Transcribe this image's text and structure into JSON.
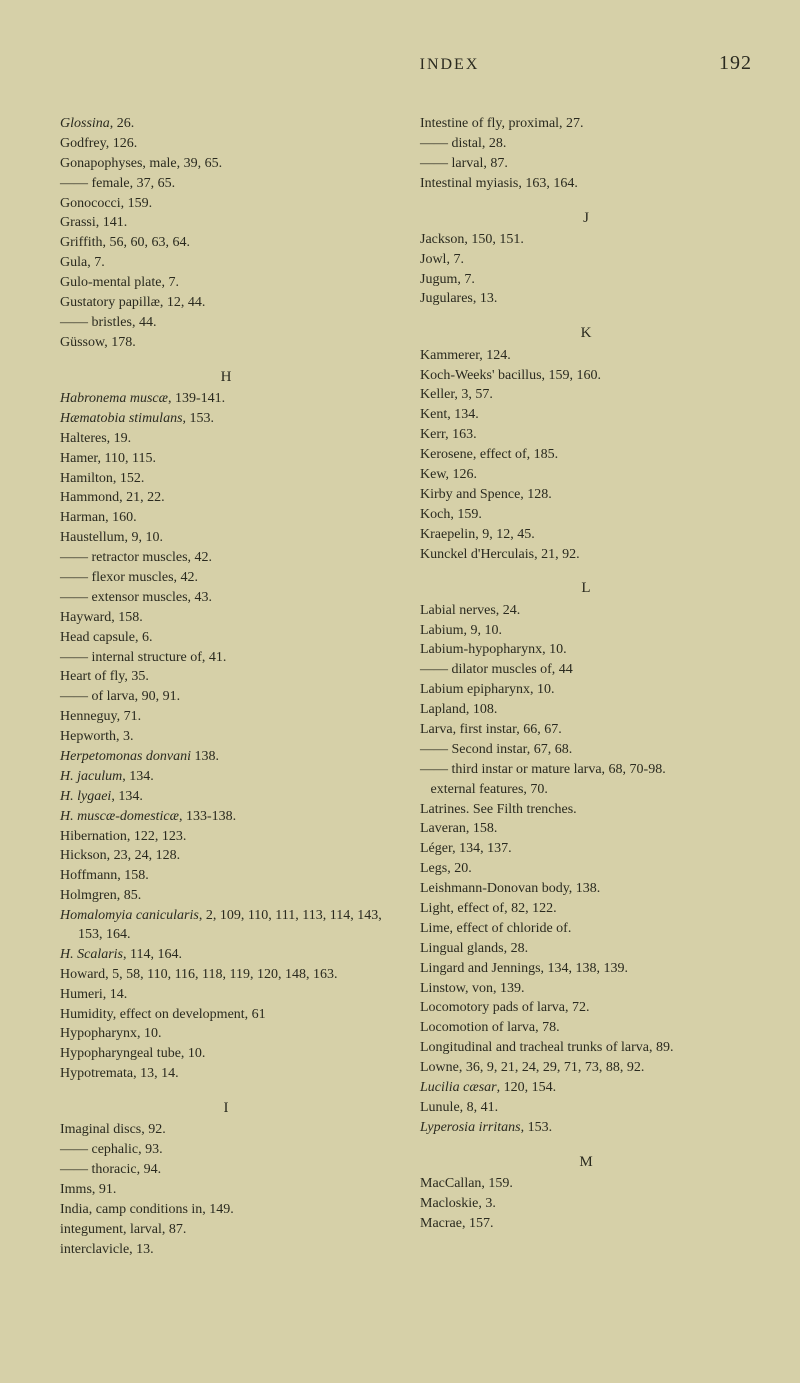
{
  "header": {
    "title": "INDEX",
    "page": "192"
  },
  "left": {
    "block1": [
      {
        "t": "<i>Glossina</i>, 26."
      },
      {
        "t": "Godfrey, 126."
      },
      {
        "t": "Gonapophyses, male, 39, 65."
      },
      {
        "t": "—— female, 37, 65."
      },
      {
        "t": "Gonococci, 159."
      },
      {
        "t": "Grassi, 141."
      },
      {
        "t": "Griffith, 56, 60, 63, 64."
      },
      {
        "t": "Gula, 7."
      },
      {
        "t": "Gulo-mental plate, 7."
      },
      {
        "t": "Gustatory papillæ, 12, 44."
      },
      {
        "t": "—— bristles, 44."
      },
      {
        "t": "Güssow, 178."
      }
    ],
    "H_letter": "H",
    "H_block": [
      {
        "t": "<i>Habronema muscæ</i>, 139-141."
      },
      {
        "t": "<i>Hæmatobia stimulans</i>, 153."
      },
      {
        "t": "Halteres, 19."
      },
      {
        "t": "Hamer, 110, 115."
      },
      {
        "t": "Hamilton, 152."
      },
      {
        "t": "Hammond, 21, 22."
      },
      {
        "t": "Harman, 160."
      },
      {
        "t": "Haustellum, 9, 10."
      },
      {
        "t": "—— retractor muscles, 42."
      },
      {
        "t": "—— flexor muscles, 42."
      },
      {
        "t": "—— extensor muscles, 43."
      },
      {
        "t": "Hayward, 158."
      },
      {
        "t": "Head capsule, 6."
      },
      {
        "t": "—— internal structure of, 41."
      },
      {
        "t": "Heart of fly, 35."
      },
      {
        "t": "—— of larva, 90, 91."
      },
      {
        "t": "Henneguy, 71."
      },
      {
        "t": "Hepworth, 3."
      },
      {
        "t": "<i>Herpetomonas donvani</i> 138."
      },
      {
        "t": "<i>H. jaculum</i>, 134."
      },
      {
        "t": "<i>H. lygaei</i>, 134."
      },
      {
        "t": "<i>H. muscæ-domesticæ</i>, 133-138."
      },
      {
        "t": "Hibernation, 122, 123."
      },
      {
        "t": "Hickson, 23, 24, 128."
      },
      {
        "t": "Hoffmann, 158."
      },
      {
        "t": "Holmgren, 85."
      },
      {
        "t": "<i>Homalomyia canicularis</i>, 2, 109, 110, 111, 113, 114, 143, 153, 164."
      },
      {
        "t": "<i>H. Scalaris</i>, 114, 164."
      },
      {
        "t": "Howard, 5, 58, 110, 116, 118, 119, 120, 148, 163."
      },
      {
        "t": "Humeri, 14."
      },
      {
        "t": "Humidity, effect on development, 61"
      },
      {
        "t": "Hypopharynx, 10."
      },
      {
        "t": "Hypopharyngeal tube, 10."
      },
      {
        "t": "Hypotremata, 13, 14."
      }
    ],
    "I_letter": "I",
    "I_block": [
      {
        "t": "Imaginal discs, 92."
      },
      {
        "t": "—— cephalic, 93."
      },
      {
        "t": "—— thoracic, 94."
      },
      {
        "t": "Imms, 91."
      },
      {
        "t": "India, camp conditions in, 149."
      },
      {
        "t": "integument, larval, 87."
      },
      {
        "t": "interclavicle, 13."
      }
    ]
  },
  "right": {
    "block1": [
      {
        "t": "Intestine of fly, proximal, 27."
      },
      {
        "t": "—— distal, 28."
      },
      {
        "t": "—— larval, 87."
      },
      {
        "t": "Intestinal myiasis, 163, 164."
      }
    ],
    "J_letter": "J",
    "J_block": [
      {
        "t": "Jackson, 150, 151."
      },
      {
        "t": "Jowl, 7."
      },
      {
        "t": "Jugum, 7."
      },
      {
        "t": "Jugulares, 13."
      }
    ],
    "K_letter": "K",
    "K_block": [
      {
        "t": "Kammerer, 124."
      },
      {
        "t": "Koch-Weeks' bacillus, 159, 160."
      },
      {
        "t": "Keller, 3, 57."
      },
      {
        "t": "Kent, 134."
      },
      {
        "t": "Kerr, 163."
      },
      {
        "t": "Kerosene, effect of, 185."
      },
      {
        "t": "Kew, 126."
      },
      {
        "t": "Kirby and Spence, 128."
      },
      {
        "t": "Koch, 159."
      },
      {
        "t": "Kraepelin, 9, 12, 45."
      },
      {
        "t": "Kunckel d'Herculais, 21, 92."
      }
    ],
    "L_letter": "L",
    "L_block": [
      {
        "t": "Labial nerves, 24."
      },
      {
        "t": "Labium, 9, 10."
      },
      {
        "t": "Labium-hypopharynx, 10."
      },
      {
        "t": "—— dilator muscles of, 44"
      },
      {
        "t": "Labium epipharynx, 10."
      },
      {
        "t": "Lapland, 108."
      },
      {
        "t": "Larva, first instar, 66, 67."
      },
      {
        "t": "—— Second instar, 67, 68."
      },
      {
        "t": "—— third instar or mature larva, 68, 70-98."
      },
      {
        "t": "&nbsp;&nbsp;&nbsp;external features, 70."
      },
      {
        "t": "Latrines. See Filth trenches."
      },
      {
        "t": "Laveran, 158."
      },
      {
        "t": "Léger, 134, 137."
      },
      {
        "t": "Legs, 20."
      },
      {
        "t": "Leishmann-Donovan body, 138."
      },
      {
        "t": "Light, effect of, 82, 122."
      },
      {
        "t": "Lime, effect of chloride of."
      },
      {
        "t": "Lingual glands, 28."
      },
      {
        "t": "Lingard and Jennings, 134, 138, 139."
      },
      {
        "t": "Linstow, von, 139."
      },
      {
        "t": "Locomotory pads of larva, 72."
      },
      {
        "t": "Locomotion of larva, 78."
      },
      {
        "t": "Longitudinal and tracheal trunks of larva, 89."
      },
      {
        "t": "Lowne, 36, 9, 21, 24, 29, 71, 73, 88, 92."
      },
      {
        "t": "<i>Lucilia cæsar</i>, 120, 154."
      },
      {
        "t": "Lunule, 8, 41."
      },
      {
        "t": "<i>Lyperosia irritans</i>, 153."
      }
    ],
    "M_letter": "M",
    "M_block": [
      {
        "t": "MacCallan, 159."
      },
      {
        "t": "Macloskie, 3."
      },
      {
        "t": "Macrae, 157."
      }
    ]
  }
}
